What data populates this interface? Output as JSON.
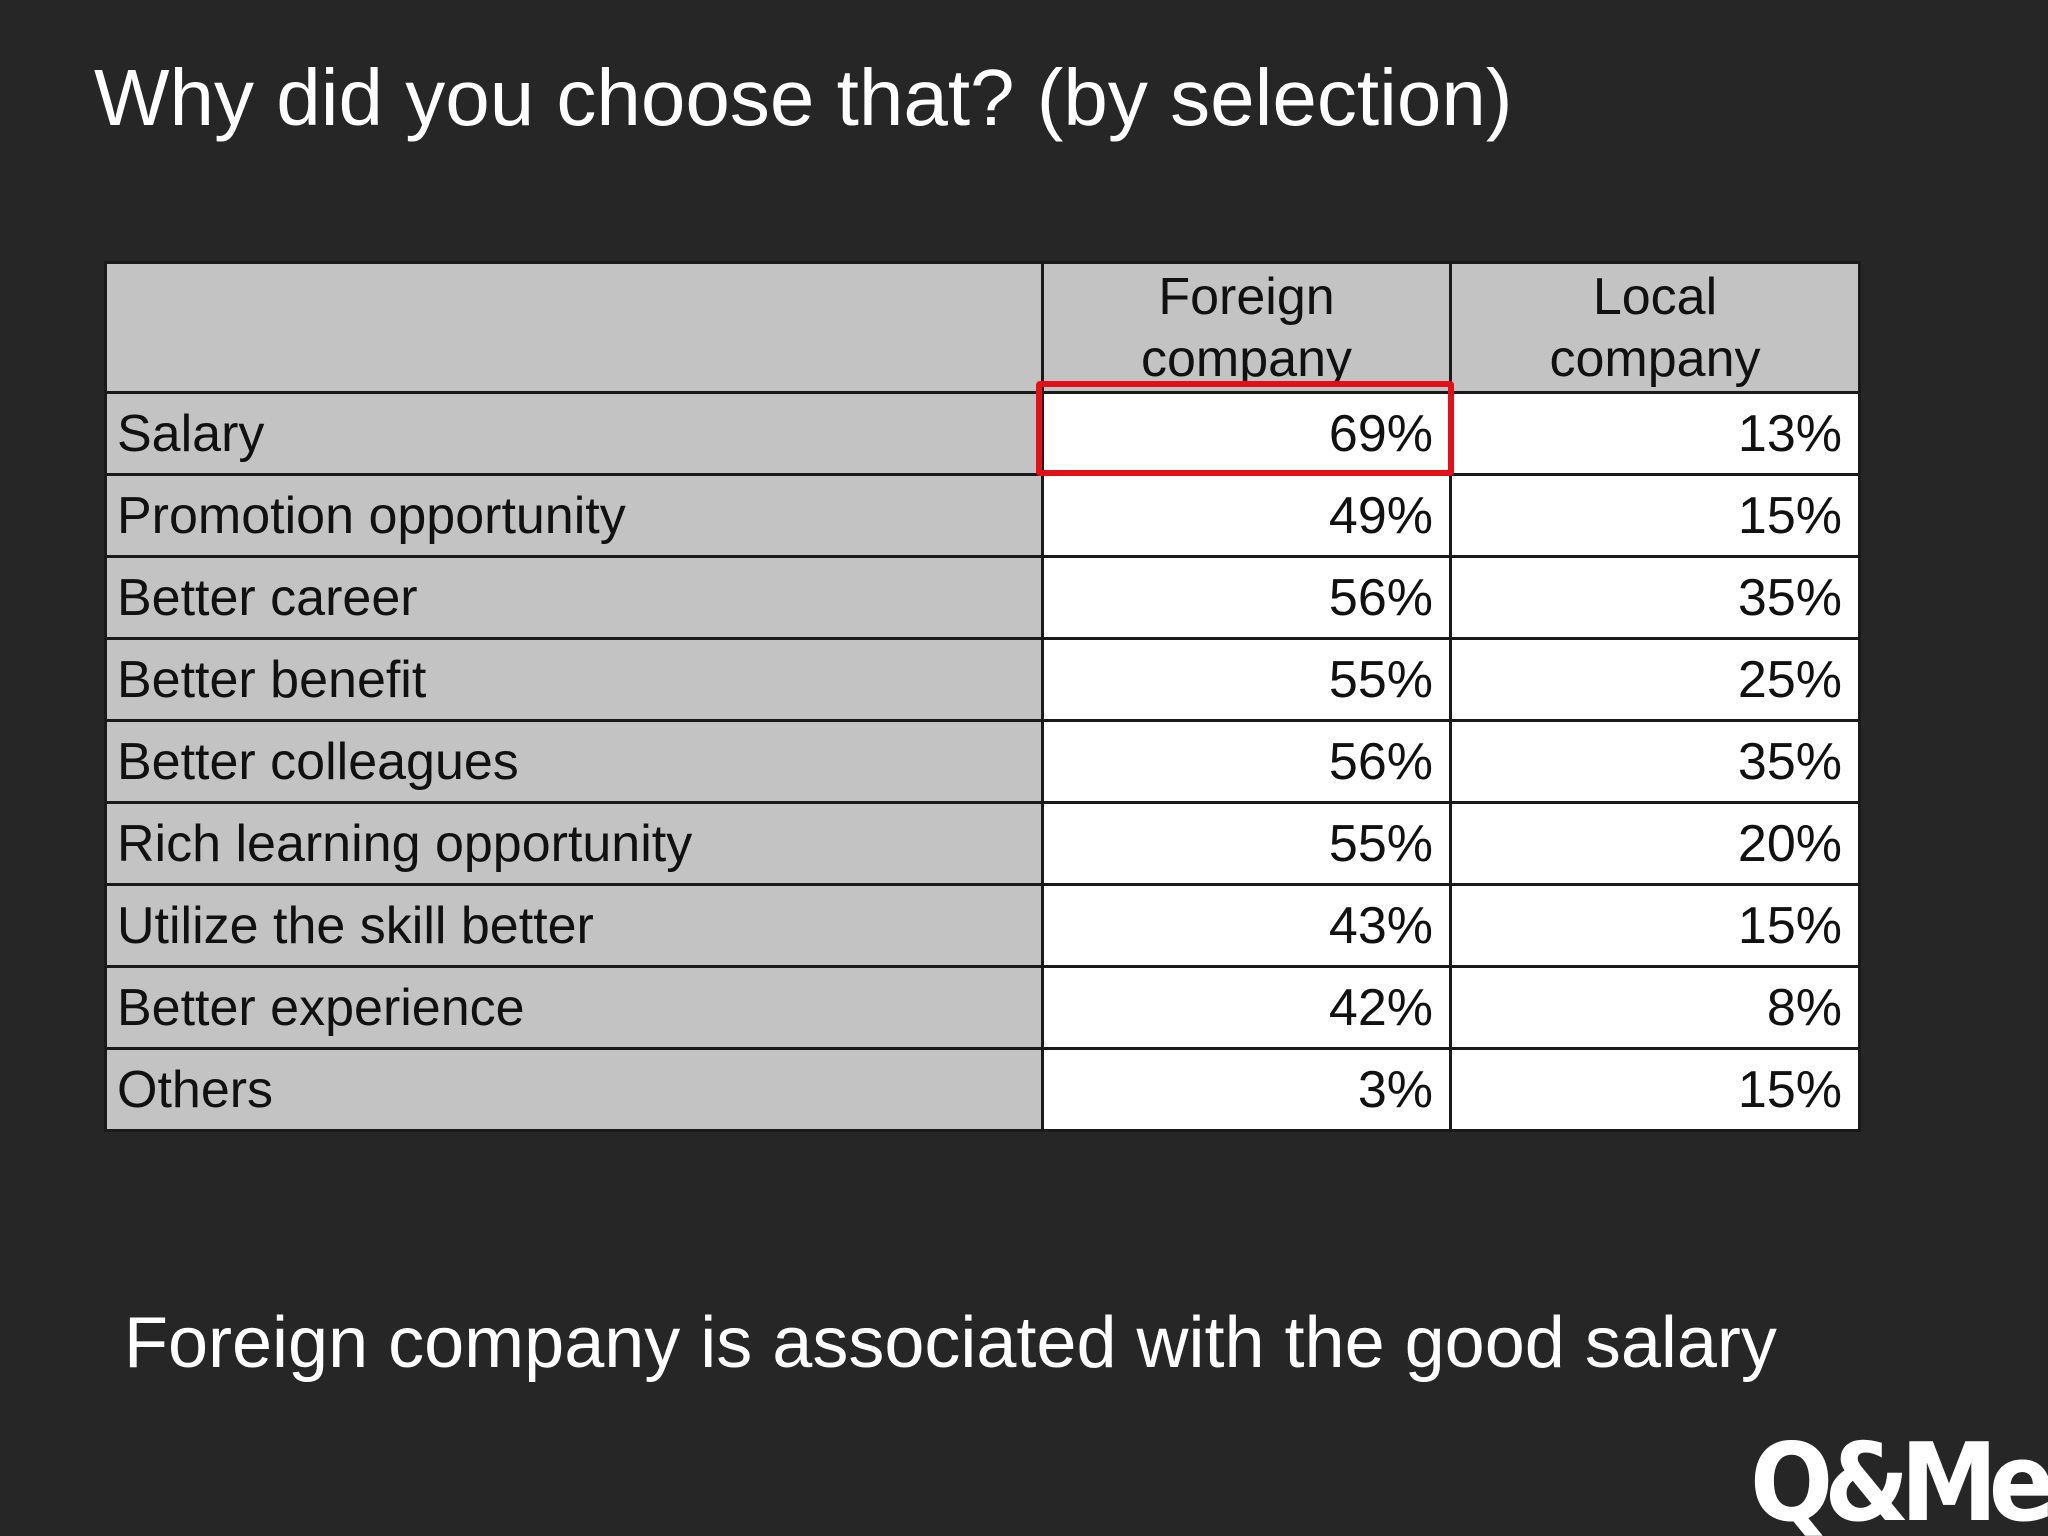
{
  "slide": {
    "title": "Why did you choose that? (by selection)",
    "caption": "Foreign company is associated with the good salary",
    "logo_text": "Q&Me"
  },
  "table": {
    "columns": [
      "",
      "Foreign company",
      "Local company"
    ],
    "rows": [
      {
        "label": "Salary",
        "foreign": "69%",
        "local": "13%"
      },
      {
        "label": "Promotion opportunity",
        "foreign": "49%",
        "local": "15%"
      },
      {
        "label": "Better career",
        "foreign": "56%",
        "local": "35%"
      },
      {
        "label": "Better benefit",
        "foreign": "55%",
        "local": "25%"
      },
      {
        "label": "Better colleagues",
        "foreign": "56%",
        "local": "35%"
      },
      {
        "label": "Rich learning opportunity",
        "foreign": "55%",
        "local": "20%"
      },
      {
        "label": "Utilize the skill better",
        "foreign": "43%",
        "local": "15%"
      },
      {
        "label": "Better experience",
        "foreign": "42%",
        "local": "8%"
      },
      {
        "label": "Others",
        "foreign": "3%",
        "local": "15%"
      }
    ],
    "highlighted_cell": {
      "row": "Salary",
      "column": "Foreign company"
    }
  },
  "colors": {
    "background": "#262626",
    "header_fill": "#c3c3c3",
    "value_fill": "#ffffff",
    "highlight": "#e3101a",
    "text_light": "#ffffff"
  }
}
